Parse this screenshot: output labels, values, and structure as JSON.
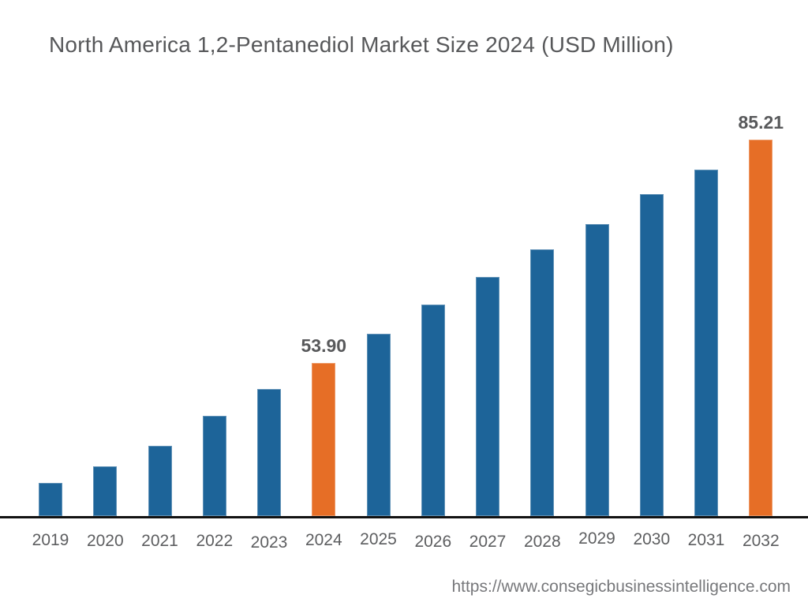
{
  "header": {
    "title": "North America 1,2-Pentanediol Market Size 2024 (USD Million)"
  },
  "footer": {
    "url": "https://www.consegicbusinessintelligence.com"
  },
  "colors": {
    "background": "#FFFFFF",
    "bar_default": "#1D6499",
    "bar_highlight": "#E66E26",
    "title_text": "#57585A",
    "tick_text": "#5D5E60",
    "value_label_text": "#58595B",
    "axis_line": "#121212",
    "footer_text": "#77787B"
  },
  "chart_data": {
    "type": "bar",
    "title": "North America 1,2-Pentanediol Market Size 2024 (USD Million)",
    "unit": "USD Million",
    "categories": [
      "2019",
      "2020",
      "2021",
      "2022",
      "2023",
      "2024",
      "2025",
      "2026",
      "2027",
      "2028",
      "2029",
      "2030",
      "2031",
      "2032"
    ],
    "values": [
      37.1,
      39.4,
      42.3,
      46.5,
      50.2,
      53.9,
      58.0,
      62.1,
      65.9,
      69.8,
      73.4,
      77.6,
      81.0,
      85.21
    ],
    "highlighted_categories": [
      "2024",
      "2032"
    ],
    "data_labels": [
      {
        "category": "2024",
        "text": "53.90"
      },
      {
        "category": "2032",
        "text": "85.21"
      }
    ],
    "xlabel": "",
    "ylabel": "",
    "ylim": [
      32.4,
      85.21
    ],
    "y_axis_visible": false,
    "grid": false,
    "legend": false,
    "bar_color_default": "#1D6499",
    "bar_color_highlight": "#E66E26"
  }
}
